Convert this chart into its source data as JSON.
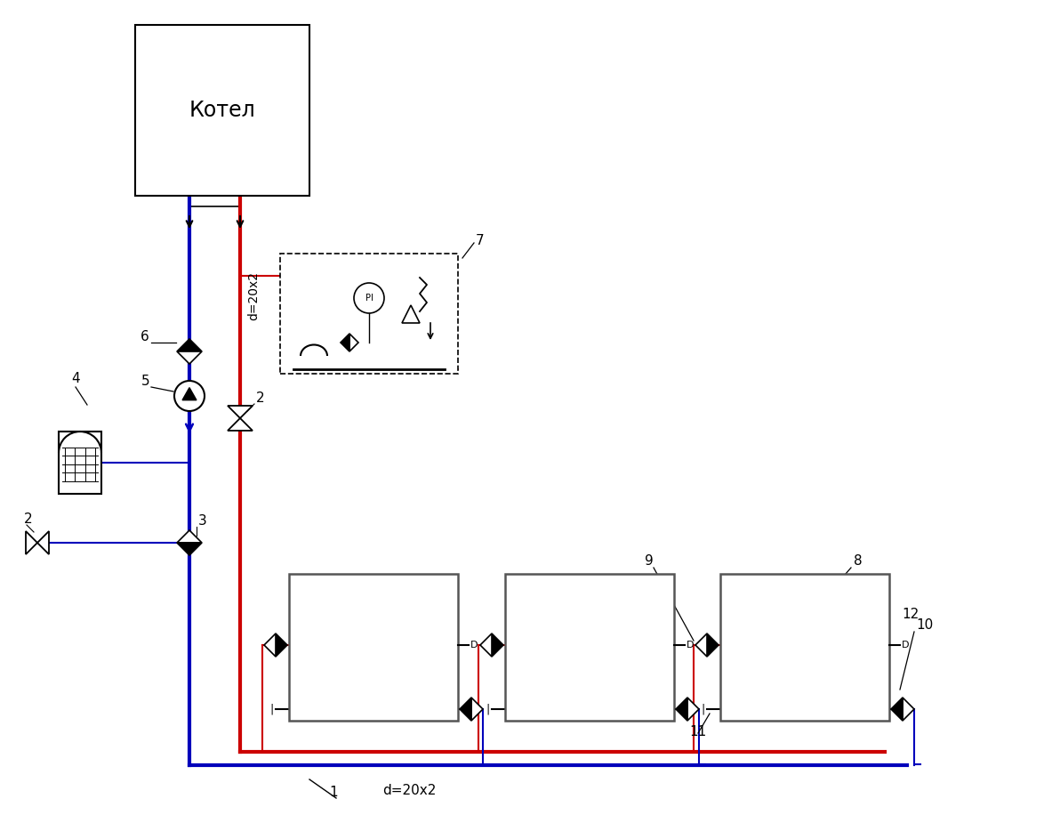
{
  "bg_color": "#ffffff",
  "red_color": "#cc0000",
  "blue_color": "#0000bb",
  "black_color": "#000000",
  "lw_main": 3.0,
  "lw_thin": 1.5,
  "lw_rad": 1.5,
  "boiler_label": "Котел",
  "label_1": "1",
  "label_2": "2",
  "label_3": "3",
  "label_4": "4",
  "label_5": "5",
  "label_6": "6",
  "label_7": "7",
  "label_8": "8",
  "label_9": "9",
  "label_10": "10",
  "label_11": "11",
  "label_12": "12",
  "pipe_label": "d=20x2",
  "pipe_label_v": "d=20x2"
}
